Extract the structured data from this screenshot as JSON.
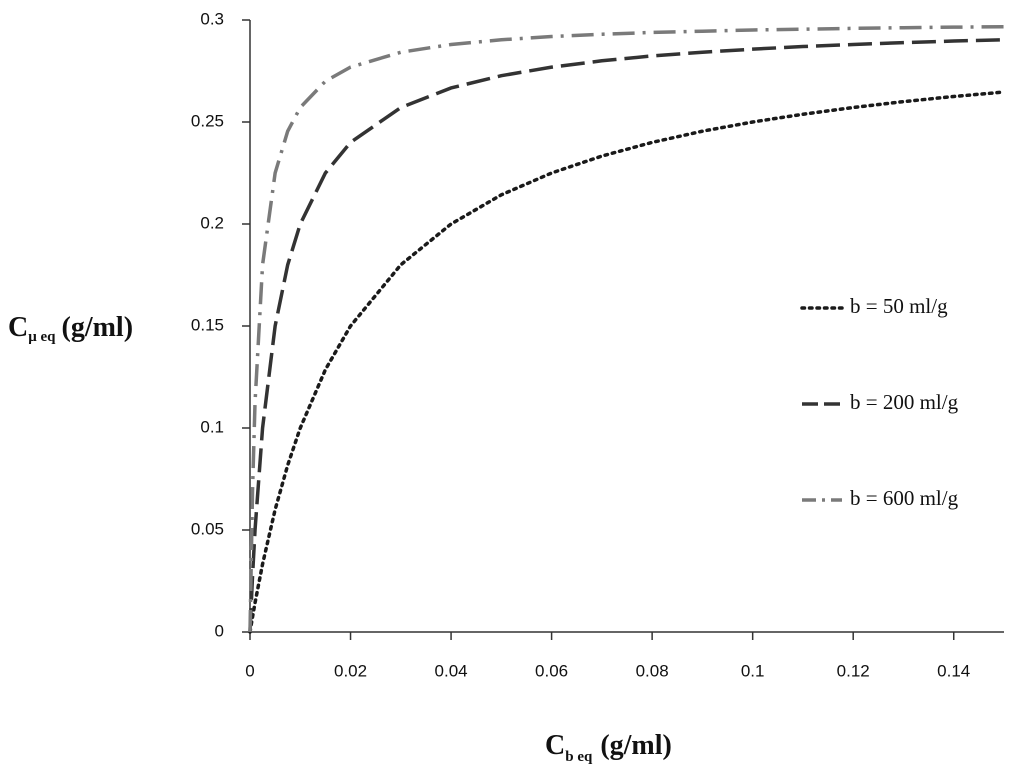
{
  "chart_data": {
    "type": "line",
    "y_label_symbol": "C",
    "y_label_subscript": "μ eq",
    "y_label_unit": "(g/ml)",
    "x_label_symbol": "C",
    "x_label_subscript": "b eq",
    "x_label_unit": "(g/ml)",
    "x": [
      0,
      0.0005,
      0.001,
      0.0025,
      0.005,
      0.0075,
      0.01,
      0.015,
      0.02,
      0.03,
      0.04,
      0.05,
      0.06,
      0.07,
      0.08,
      0.09,
      0.1,
      0.11,
      0.12,
      0.13,
      0.14,
      0.15
    ],
    "series": [
      {
        "name": "b = 50 ml/g",
        "color": "#1a1a1a",
        "dash": "dotted",
        "values": [
          0,
          0.0073,
          0.0143,
          0.0333,
          0.06,
          0.0818,
          0.1,
          0.1286,
          0.15,
          0.18,
          0.2,
          0.2143,
          0.225,
          0.2333,
          0.24,
          0.2455,
          0.25,
          0.2538,
          0.2571,
          0.26,
          0.2625,
          0.2647
        ]
      },
      {
        "name": "b = 200 ml/g",
        "color": "#333333",
        "dash": "dashed",
        "values": [
          0,
          0.0273,
          0.05,
          0.1,
          0.15,
          0.18,
          0.2,
          0.225,
          0.24,
          0.2571,
          0.2667,
          0.2727,
          0.2769,
          0.28,
          0.2824,
          0.2842,
          0.2857,
          0.287,
          0.288,
          0.2889,
          0.2897,
          0.2903
        ]
      },
      {
        "name": "b = 600 ml/g",
        "color": "#7a7a7a",
        "dash": "dashdot",
        "values": [
          0,
          0.0692,
          0.1125,
          0.18,
          0.225,
          0.2455,
          0.2571,
          0.27,
          0.2769,
          0.2842,
          0.288,
          0.2903,
          0.2919,
          0.293,
          0.2939,
          0.2945,
          0.2951,
          0.2955,
          0.2959,
          0.2962,
          0.2965,
          0.2967
        ]
      }
    ],
    "xlim": [
      0,
      0.15
    ],
    "xticks": [
      0,
      0.02,
      0.04,
      0.06,
      0.08,
      0.1,
      0.12,
      0.14
    ],
    "ylim": [
      0,
      0.3
    ],
    "yticks": [
      0,
      0.05,
      0.1,
      0.15,
      0.2,
      0.25,
      0.3
    ],
    "grid": false,
    "legend_position": "right"
  }
}
